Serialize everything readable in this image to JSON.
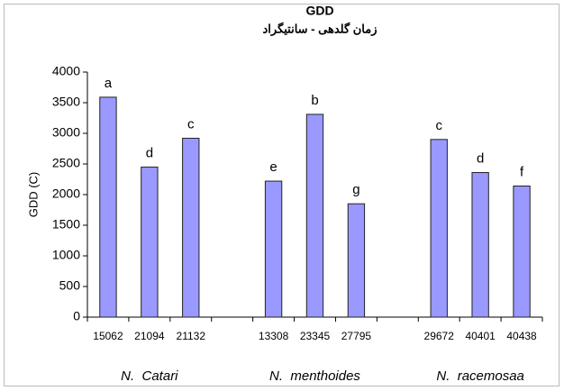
{
  "chart_data": {
    "type": "bar",
    "title": "GDD",
    "subtitle": "زمان گلدهی - سانتیگراد",
    "y_label": "GDD (C)",
    "categories": [
      "15062",
      "21094",
      "21132",
      null,
      "13308",
      "23345",
      "27795",
      null,
      "29672",
      "40401",
      "40438"
    ],
    "values": [
      3590,
      2450,
      2920,
      null,
      2220,
      3310,
      1850,
      null,
      2900,
      2360,
      2140
    ],
    "letters": [
      "a",
      "d",
      "c",
      null,
      "e",
      "b",
      "g",
      null,
      "c",
      "d",
      "f"
    ],
    "groups": [
      "N.  Catari",
      "N.  menthoides",
      "N.  racemosaa"
    ],
    "color": "#9999ff",
    "ylim": [
      0,
      4000
    ],
    "yticks": [
      0,
      500,
      1000,
      1500,
      2000,
      2500,
      3000,
      3500,
      4000
    ]
  }
}
